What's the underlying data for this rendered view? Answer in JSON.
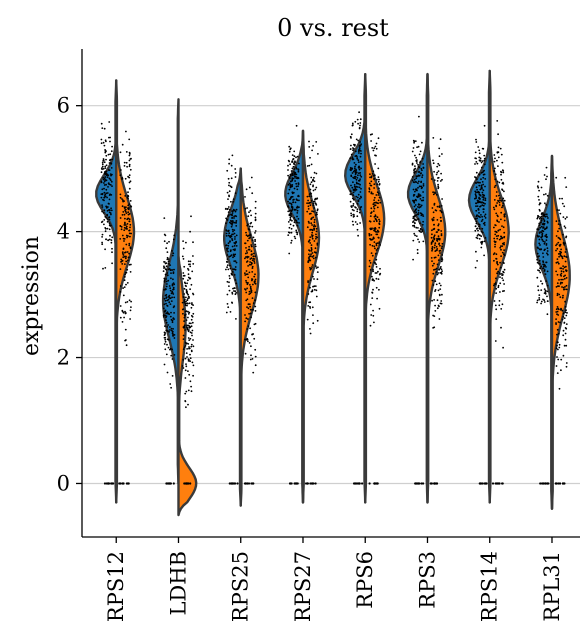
{
  "chart_data": {
    "type": "violin",
    "variant": "split",
    "title": "0 vs. rest",
    "xlabel": "",
    "ylabel": "expression",
    "ylim": [
      -0.85,
      6.9
    ],
    "yticks": [
      0,
      2,
      4,
      6
    ],
    "grid": "horizontal",
    "categories": [
      "RPS12",
      "LDHB",
      "RPS25",
      "RPS27",
      "RPS6",
      "RPS3",
      "RPS14",
      "RPL31"
    ],
    "series": [
      {
        "color": "#1f77b4",
        "side": "left",
        "profiles": [
          {
            "lo": -0.3,
            "hi": 6.4,
            "mode": 4.6,
            "spread": 0.3,
            "width": 0.34
          },
          {
            "lo": 0.0,
            "hi": 6.1,
            "mode": 2.9,
            "spread": 0.6,
            "width": 0.26
          },
          {
            "lo": -0.35,
            "hi": 5.0,
            "mode": 3.9,
            "spread": 0.45,
            "width": 0.28
          },
          {
            "lo": -0.3,
            "hi": 5.6,
            "mode": 4.6,
            "spread": 0.33,
            "width": 0.3
          },
          {
            "lo": -0.3,
            "hi": 6.5,
            "mode": 4.9,
            "spread": 0.33,
            "width": 0.34
          },
          {
            "lo": -0.3,
            "hi": 6.5,
            "mode": 4.6,
            "spread": 0.33,
            "width": 0.33
          },
          {
            "lo": -0.3,
            "hi": 6.55,
            "mode": 4.5,
            "spread": 0.35,
            "width": 0.35
          },
          {
            "lo": -0.4,
            "hi": 5.2,
            "mode": 3.8,
            "spread": 0.4,
            "width": 0.28
          }
        ]
      },
      {
        "color": "#ff7f0e",
        "side": "right",
        "profiles": [
          {
            "lo": -0.3,
            "hi": 6.4,
            "mode": 4.0,
            "spread": 0.55,
            "width": 0.3
          },
          {
            "lo": -0.5,
            "hi": 3.6,
            "mode": 0.0,
            "spread": 0.25,
            "width": 0.3,
            "mode2": 2.5,
            "spread2": 0.55,
            "width2": 0.12
          },
          {
            "lo": -0.35,
            "hi": 5.0,
            "mode": 3.3,
            "spread": 0.6,
            "width": 0.3
          },
          {
            "lo": -0.3,
            "hi": 5.6,
            "mode": 3.9,
            "spread": 0.55,
            "width": 0.27
          },
          {
            "lo": -0.3,
            "hi": 6.5,
            "mode": 4.2,
            "spread": 0.55,
            "width": 0.32
          },
          {
            "lo": -0.3,
            "hi": 6.5,
            "mode": 4.0,
            "spread": 0.55,
            "width": 0.3
          },
          {
            "lo": -0.3,
            "hi": 6.55,
            "mode": 4.0,
            "spread": 0.55,
            "width": 0.32
          },
          {
            "lo": -0.4,
            "hi": 5.2,
            "mode": 3.3,
            "spread": 0.65,
            "width": 0.3
          }
        ]
      }
    ],
    "strip_points": {
      "color": "#000000",
      "left_center": [
        4.6,
        2.9,
        3.9,
        4.6,
        4.9,
        4.6,
        4.5,
        3.8
      ],
      "left_spread": [
        0.45,
        0.55,
        0.55,
        0.4,
        0.45,
        0.45,
        0.45,
        0.5
      ],
      "right_center": [
        4.0,
        2.6,
        3.4,
        3.9,
        4.2,
        4.0,
        4.0,
        3.3
      ],
      "right_spread": [
        0.7,
        0.6,
        0.7,
        0.65,
        0.7,
        0.7,
        0.7,
        0.75
      ]
    }
  }
}
